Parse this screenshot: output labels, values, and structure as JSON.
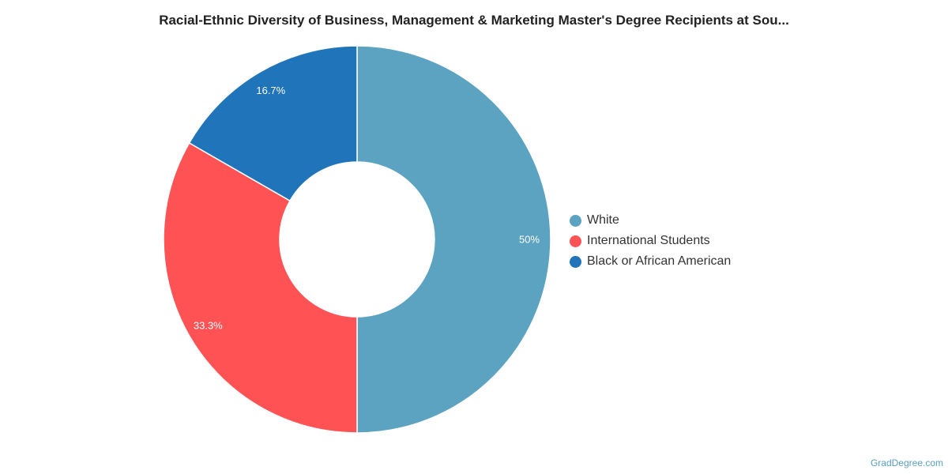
{
  "chart_data": {
    "type": "pie",
    "title": "Racial-Ethnic Diversity of Business, Management & Marketing Master's Degree Recipients at Sou...",
    "categories": [
      "White",
      "International Students",
      "Black or African American"
    ],
    "values": [
      50,
      33.3,
      16.7
    ],
    "value_labels": [
      "50%",
      "33.3%",
      "16.7%"
    ],
    "colors": [
      "#5ba3c0",
      "#fe5255",
      "#1f74ba"
    ],
    "donut": true,
    "legend_position": "right"
  },
  "watermark": "GradDegree.com"
}
